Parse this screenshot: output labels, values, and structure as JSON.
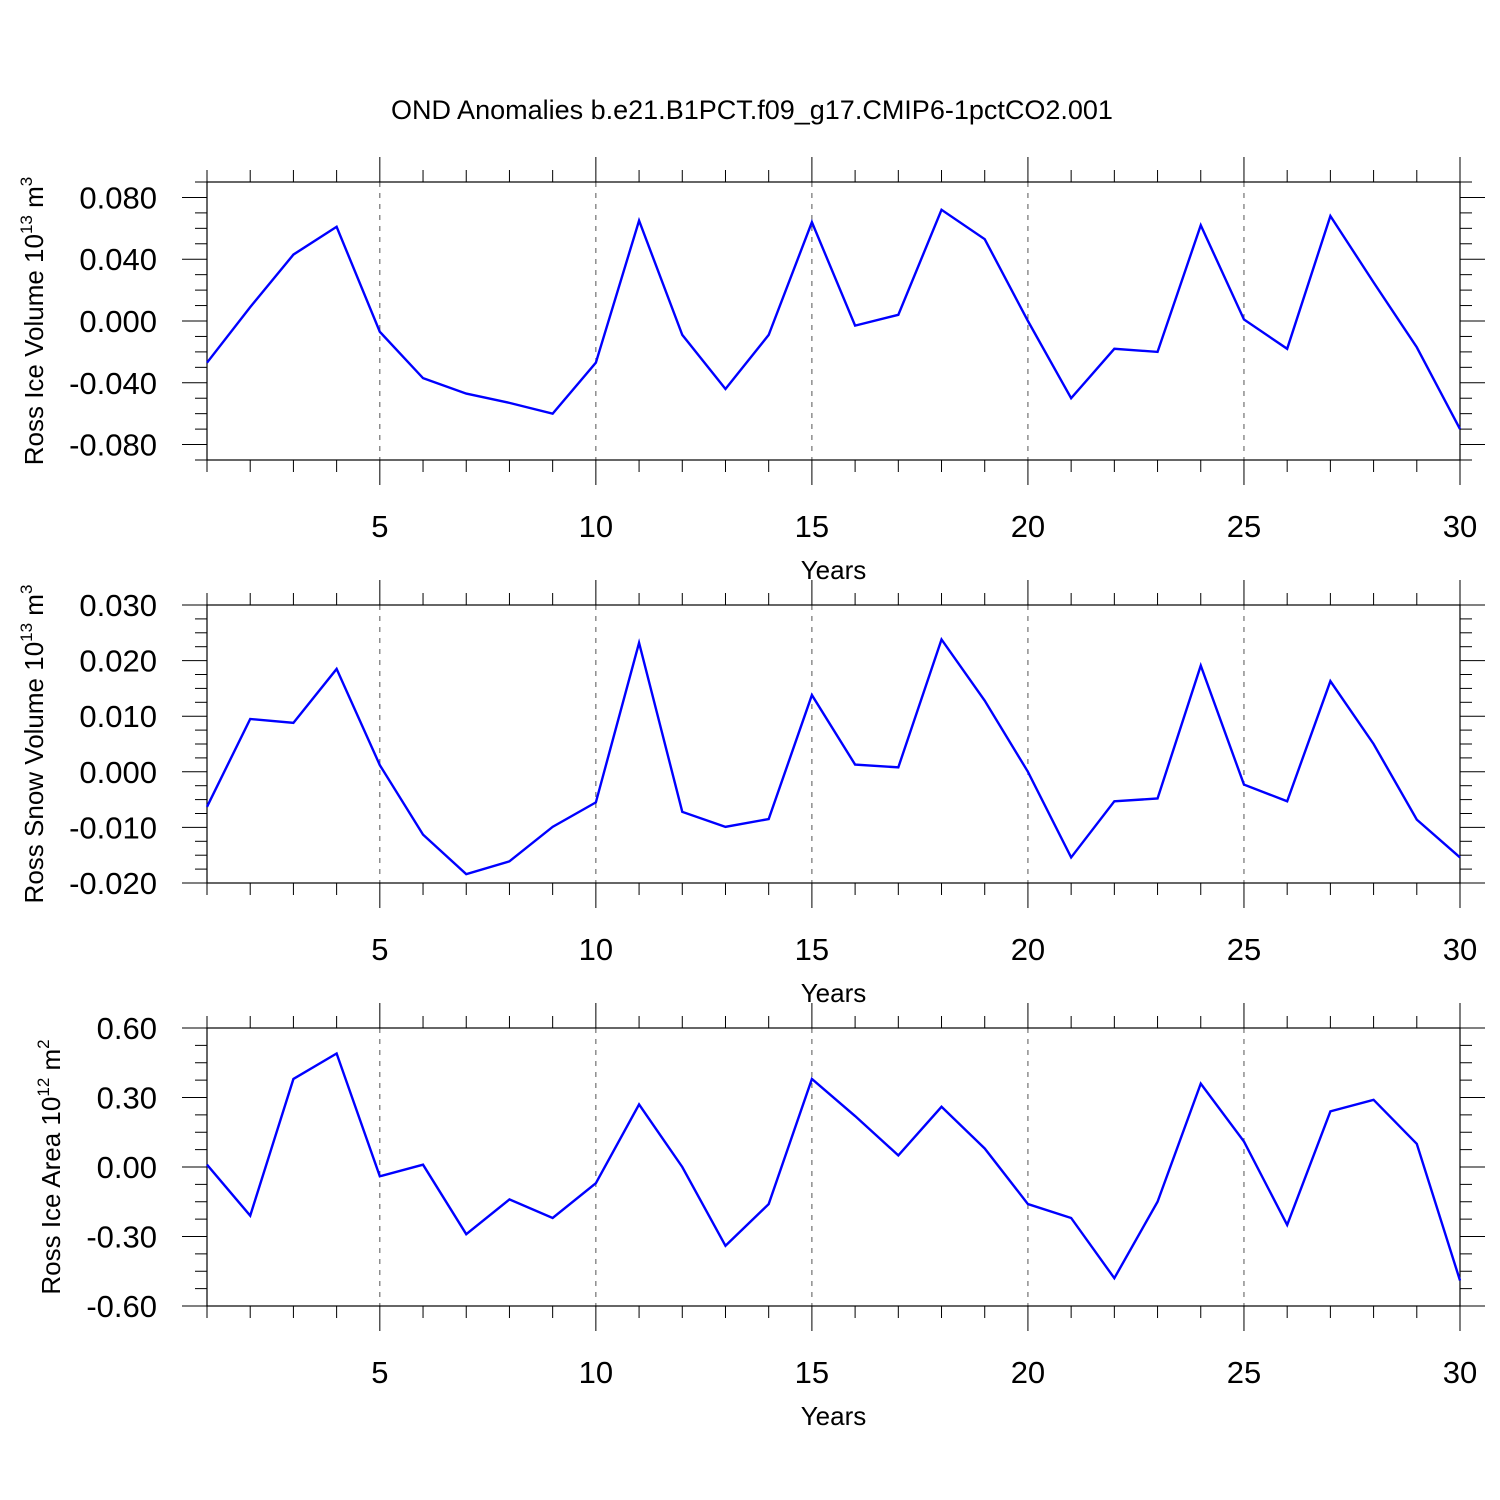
{
  "title": "OND Anomalies b.e21.B1PCT.f09_g17.CMIP6-1pctCO2.001",
  "line_color": "#0000ff",
  "chart_data": [
    {
      "type": "line",
      "xlabel": "Years",
      "ylabel": {
        "text": "Ross Ice Volume 10",
        "exp": "13",
        "unit": " m",
        "unit_exp": "3"
      },
      "xlim": [
        1,
        30
      ],
      "ylim": [
        -0.09,
        0.09
      ],
      "x_ticks": [
        5,
        10,
        15,
        20,
        25,
        30
      ],
      "x_tick_labels": [
        "5",
        "10",
        "15",
        "20",
        "25",
        "30"
      ],
      "y_ticks": [
        -0.08,
        -0.04,
        0.0,
        0.04,
        0.08
      ],
      "y_tick_labels": [
        "-0.080",
        "-0.040",
        "0.000",
        "0.040",
        "0.080"
      ],
      "x": [
        1,
        2,
        3,
        4,
        5,
        6,
        7,
        8,
        9,
        10,
        11,
        12,
        13,
        14,
        15,
        16,
        17,
        18,
        19,
        20,
        21,
        22,
        23,
        24,
        25,
        26,
        27,
        28,
        29,
        30
      ],
      "values": [
        -0.027,
        0.009,
        0.043,
        0.061,
        -0.007,
        -0.037,
        -0.047,
        -0.053,
        -0.06,
        -0.027,
        0.065,
        -0.009,
        -0.044,
        -0.009,
        0.064,
        -0.003,
        0.004,
        0.072,
        0.053,
        0.0,
        -0.05,
        -0.018,
        -0.02,
        0.062,
        0.001,
        -0.018,
        0.068,
        0.025,
        -0.017,
        -0.07
      ]
    },
    {
      "type": "line",
      "xlabel": "Years",
      "ylabel": {
        "text": "Ross Snow Volume 10",
        "exp": "13",
        "unit": " m",
        "unit_exp": "3"
      },
      "xlim": [
        1,
        30
      ],
      "ylim": [
        -0.02,
        0.03
      ],
      "x_ticks": [
        5,
        10,
        15,
        20,
        25,
        30
      ],
      "x_tick_labels": [
        "5",
        "10",
        "15",
        "20",
        "25",
        "30"
      ],
      "y_ticks": [
        -0.02,
        -0.01,
        0.0,
        0.01,
        0.02,
        0.03
      ],
      "y_tick_labels": [
        "-0.020",
        "-0.010",
        "0.000",
        "0.010",
        "0.020",
        "0.030"
      ],
      "x": [
        1,
        2,
        3,
        4,
        5,
        6,
        7,
        8,
        9,
        10,
        11,
        12,
        13,
        14,
        15,
        16,
        17,
        18,
        19,
        20,
        21,
        22,
        23,
        24,
        25,
        26,
        27,
        28,
        29,
        30
      ],
      "values": [
        -0.0063,
        0.0095,
        0.0088,
        0.0185,
        0.0012,
        -0.0113,
        -0.0184,
        -0.0161,
        -0.0099,
        -0.0055,
        0.0232,
        -0.0072,
        -0.0099,
        -0.0085,
        0.0138,
        0.0013,
        0.0008,
        0.0238,
        0.0128,
        0.0,
        -0.0154,
        -0.0053,
        -0.0048,
        0.0191,
        -0.0023,
        -0.0053,
        0.0163,
        0.005,
        -0.0086,
        -0.0154
      ]
    },
    {
      "type": "line",
      "xlabel": "Years",
      "ylabel": {
        "text": "Ross Ice Area 10",
        "exp": "12",
        "unit": " m",
        "unit_exp": "2"
      },
      "xlim": [
        1,
        30
      ],
      "ylim": [
        -0.6,
        0.6
      ],
      "x_ticks": [
        5,
        10,
        15,
        20,
        25,
        30
      ],
      "x_tick_labels": [
        "5",
        "10",
        "15",
        "20",
        "25",
        "30"
      ],
      "y_ticks": [
        -0.6,
        -0.3,
        0.0,
        0.3,
        0.6
      ],
      "y_tick_labels": [
        "-0.60",
        "-0.30",
        "0.00",
        "0.30",
        "0.60"
      ],
      "x": [
        1,
        2,
        3,
        4,
        5,
        6,
        7,
        8,
        9,
        10,
        11,
        12,
        13,
        14,
        15,
        16,
        17,
        18,
        19,
        20,
        21,
        22,
        23,
        24,
        25,
        26,
        27,
        28,
        29,
        30
      ],
      "values": [
        0.01,
        -0.21,
        0.38,
        0.49,
        -0.04,
        0.01,
        -0.29,
        -0.14,
        -0.22,
        -0.07,
        0.27,
        0.0,
        -0.34,
        -0.16,
        0.38,
        0.22,
        0.05,
        0.26,
        0.08,
        -0.16,
        -0.22,
        -0.48,
        -0.15,
        0.36,
        0.11,
        -0.25,
        0.24,
        0.29,
        0.1,
        -0.49
      ]
    }
  ]
}
